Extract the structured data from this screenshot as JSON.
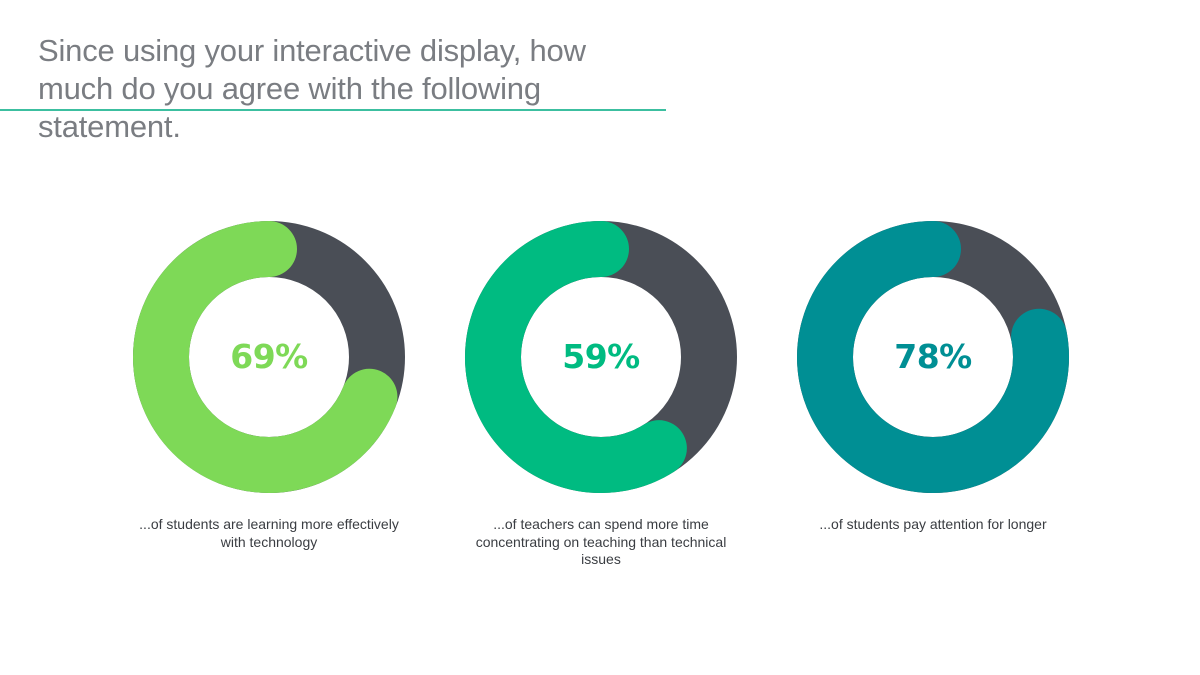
{
  "header": {
    "title_line1": "Since using your interactive display, how",
    "title_line2": "much do you agree with the following statement."
  },
  "colors": {
    "track": "#4a4e56",
    "title": "#7a7d82",
    "rule": "#3cbfa0",
    "caption": "#3a3d42"
  },
  "chart_data": [
    {
      "type": "donut",
      "value": 69,
      "label": "69%",
      "caption": "...of students are learning more effectively with technology",
      "color": "#7ed957"
    },
    {
      "type": "donut",
      "value": 59,
      "label": "59%",
      "caption": "...of teachers can spend more time concentrating on teaching than technical issues",
      "color": "#00bb81"
    },
    {
      "type": "donut",
      "value": 78,
      "label": "78%",
      "caption": "...of students pay attention for longer",
      "color": "#008f94"
    }
  ]
}
